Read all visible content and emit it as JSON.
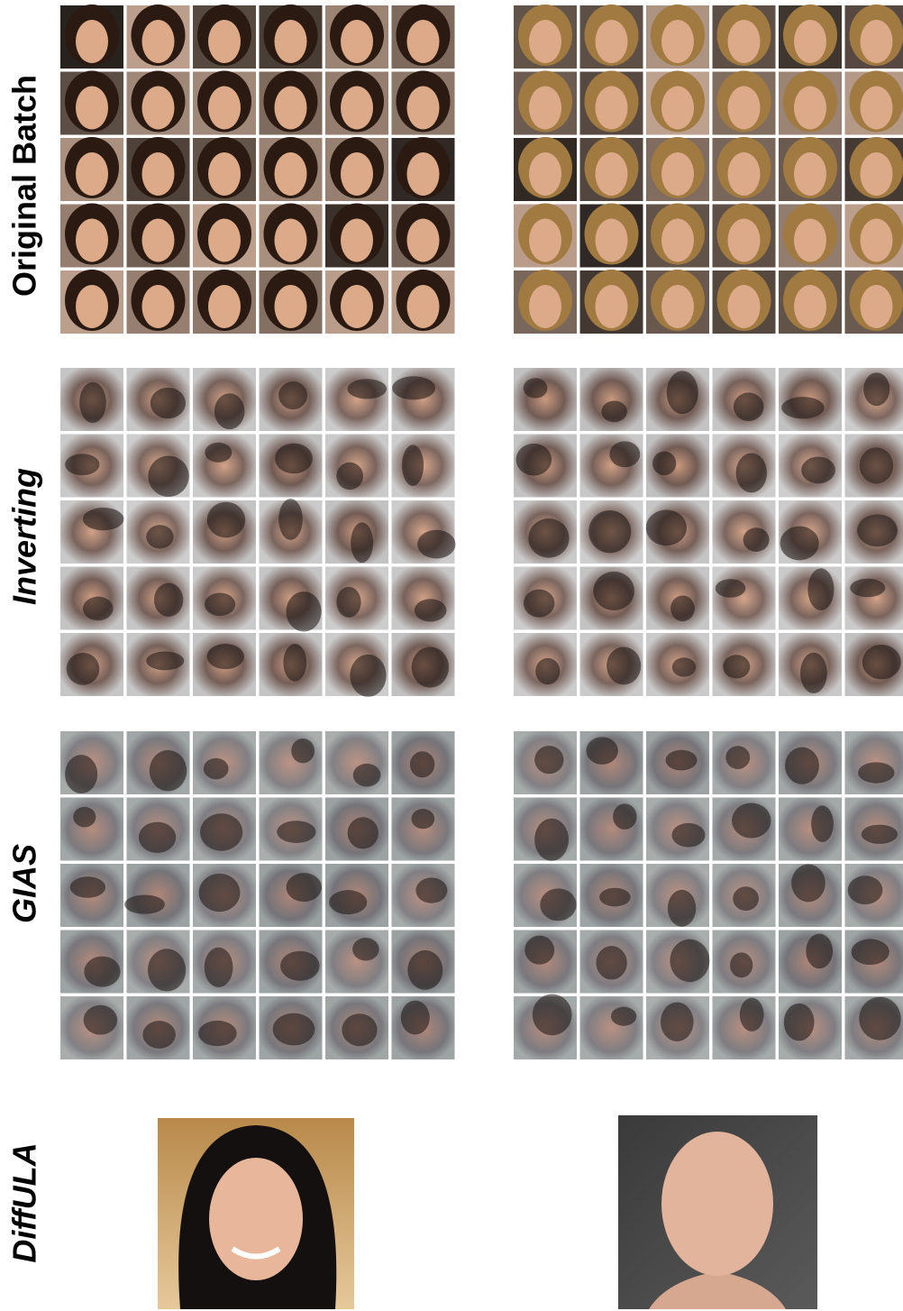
{
  "row_labels": [
    "Original Batch",
    "Inverting",
    "GIAS",
    "DiffULA"
  ]
}
